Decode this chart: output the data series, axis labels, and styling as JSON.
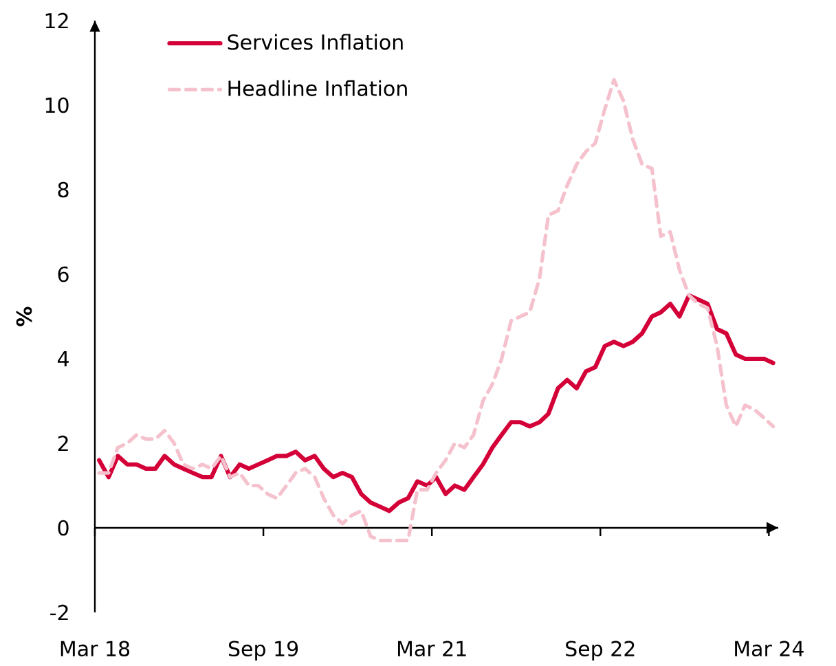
{
  "chart_data": {
    "type": "line",
    "ylabel": "%",
    "x": [
      "2018-03-15",
      "2018-04-15",
      "2018-05-15",
      "2018-06-15",
      "2018-07-15",
      "2018-08-15",
      "2018-09-15",
      "2018-10-15",
      "2018-11-15",
      "2018-12-15",
      "2019-01-15",
      "2019-02-15",
      "2019-03-15",
      "2019-04-15",
      "2019-05-15",
      "2019-06-15",
      "2019-07-15",
      "2019-08-15",
      "2019-09-15",
      "2019-10-15",
      "2019-11-15",
      "2019-12-15",
      "2020-01-15",
      "2020-02-15",
      "2020-03-15",
      "2020-04-15",
      "2020-05-15",
      "2020-06-15",
      "2020-07-15",
      "2020-08-15",
      "2020-09-15",
      "2020-10-15",
      "2020-11-15",
      "2020-12-15",
      "2021-01-15",
      "2021-02-15",
      "2021-03-15",
      "2021-04-15",
      "2021-05-15",
      "2021-06-15",
      "2021-07-15",
      "2021-08-15",
      "2021-09-15",
      "2021-10-15",
      "2021-11-15",
      "2021-12-15",
      "2022-01-15",
      "2022-02-15",
      "2022-03-15",
      "2022-04-15",
      "2022-05-15",
      "2022-06-15",
      "2022-07-15",
      "2022-08-15",
      "2022-09-15",
      "2022-10-15",
      "2022-11-15",
      "2022-12-15",
      "2023-01-15",
      "2023-02-15",
      "2023-03-15",
      "2023-04-15",
      "2023-05-15",
      "2023-06-15",
      "2023-07-15",
      "2023-08-15",
      "2023-09-15",
      "2023-10-15",
      "2023-11-15",
      "2023-12-15",
      "2024-01-15",
      "2024-02-15",
      "2024-03-15"
    ],
    "xlim": [
      "2018-03",
      "2024-04"
    ],
    "xticks": [
      {
        "value": "2018-03",
        "label": "Mar 18"
      },
      {
        "value": "2019-09",
        "label": "Sep 19"
      },
      {
        "value": "2021-03",
        "label": "Mar 21"
      },
      {
        "value": "2022-09",
        "label": "Sep 22"
      },
      {
        "value": "2024-03",
        "label": "Mar 24"
      }
    ],
    "ylim": [
      -2,
      12
    ],
    "yticks": [
      -2,
      0,
      2,
      4,
      6,
      8,
      10,
      12
    ],
    "legend": "top left",
    "series": [
      {
        "name": "Services Inflation",
        "color": "#d40038",
        "line_style": "solid",
        "values": [
          1.6,
          1.2,
          1.7,
          1.5,
          1.5,
          1.4,
          1.4,
          1.7,
          1.5,
          1.4,
          1.3,
          1.2,
          1.2,
          1.7,
          1.2,
          1.5,
          1.4,
          1.5,
          1.6,
          1.7,
          1.7,
          1.8,
          1.6,
          1.7,
          1.4,
          1.2,
          1.3,
          1.2,
          0.8,
          0.6,
          0.5,
          0.4,
          0.6,
          0.7,
          1.1,
          1.0,
          1.2,
          0.8,
          1.0,
          0.9,
          1.2,
          1.5,
          1.9,
          2.2,
          2.5,
          2.5,
          2.4,
          2.5,
          2.7,
          3.3,
          3.5,
          3.3,
          3.7,
          3.8,
          4.3,
          4.4,
          4.3,
          4.4,
          4.6,
          5.0,
          5.1,
          5.3,
          5.0,
          5.5,
          5.4,
          5.3,
          4.7,
          4.6,
          4.1,
          4.0,
          4.0,
          4.0,
          3.9
        ]
      },
      {
        "name": "Headline Inflation",
        "color": "#f4c1cc",
        "line_style": "dashed",
        "values": [
          1.3,
          1.3,
          1.9,
          2.0,
          2.2,
          2.1,
          2.1,
          2.3,
          2.0,
          1.5,
          1.4,
          1.5,
          1.4,
          1.7,
          1.2,
          1.3,
          1.0,
          1.0,
          0.8,
          0.7,
          1.0,
          1.3,
          1.4,
          1.2,
          0.7,
          0.3,
          0.1,
          0.3,
          0.4,
          -0.2,
          -0.3,
          -0.3,
          -0.3,
          -0.3,
          0.9,
          0.9,
          1.3,
          1.6,
          2.0,
          1.9,
          2.2,
          3.0,
          3.4,
          4.0,
          4.9,
          5.0,
          5.1,
          5.9,
          7.4,
          7.5,
          8.1,
          8.6,
          8.9,
          9.1,
          9.9,
          10.6,
          10.1,
          9.2,
          8.6,
          8.5,
          6.9,
          7.0,
          6.1,
          5.5,
          5.3,
          5.2,
          4.3,
          2.9,
          2.4,
          2.9,
          2.8,
          2.6,
          2.4
        ]
      }
    ]
  }
}
